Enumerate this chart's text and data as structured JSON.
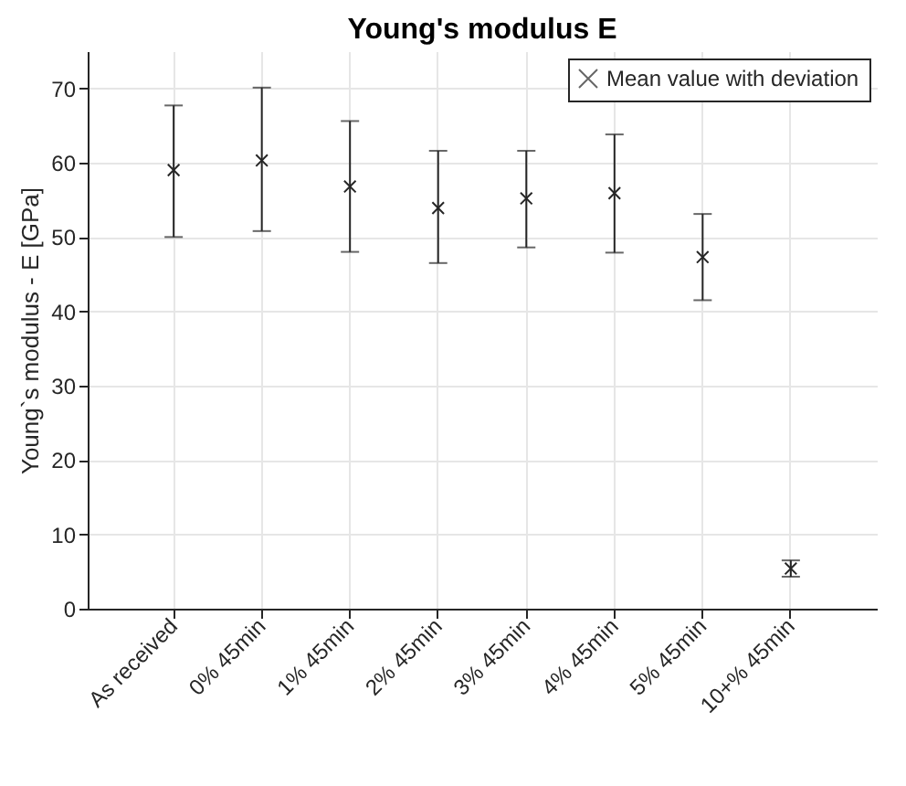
{
  "chart_data": {
    "type": "scatter",
    "title": "Young's modulus E",
    "ylabel": "Young`s modulus - E [GPa]",
    "categories": [
      "As received",
      "0% 45min",
      "1% 45min",
      "2% 45min",
      "3% 45min",
      "4% 45min",
      "5% 45min",
      "10+% 45min"
    ],
    "series": [
      {
        "name": "Mean value with deviation",
        "color": "#262626",
        "values": [
          59.0,
          60.3,
          56.8,
          53.9,
          55.2,
          55.9,
          47.3,
          5.4
        ],
        "errors": [
          [
            50.0,
            67.7
          ],
          [
            50.8,
            70.1
          ],
          [
            48.0,
            65.6
          ],
          [
            46.5,
            61.6
          ],
          [
            48.6,
            61.6
          ],
          [
            47.9,
            63.8
          ],
          [
            41.5,
            53.1
          ],
          [
            4.3,
            6.5
          ]
        ]
      }
    ],
    "ylim": [
      0,
      75
    ],
    "yticks": [
      0,
      10,
      20,
      30,
      40,
      50,
      60,
      70
    ],
    "grid": true,
    "legend": "top right",
    "marker": "cross"
  }
}
